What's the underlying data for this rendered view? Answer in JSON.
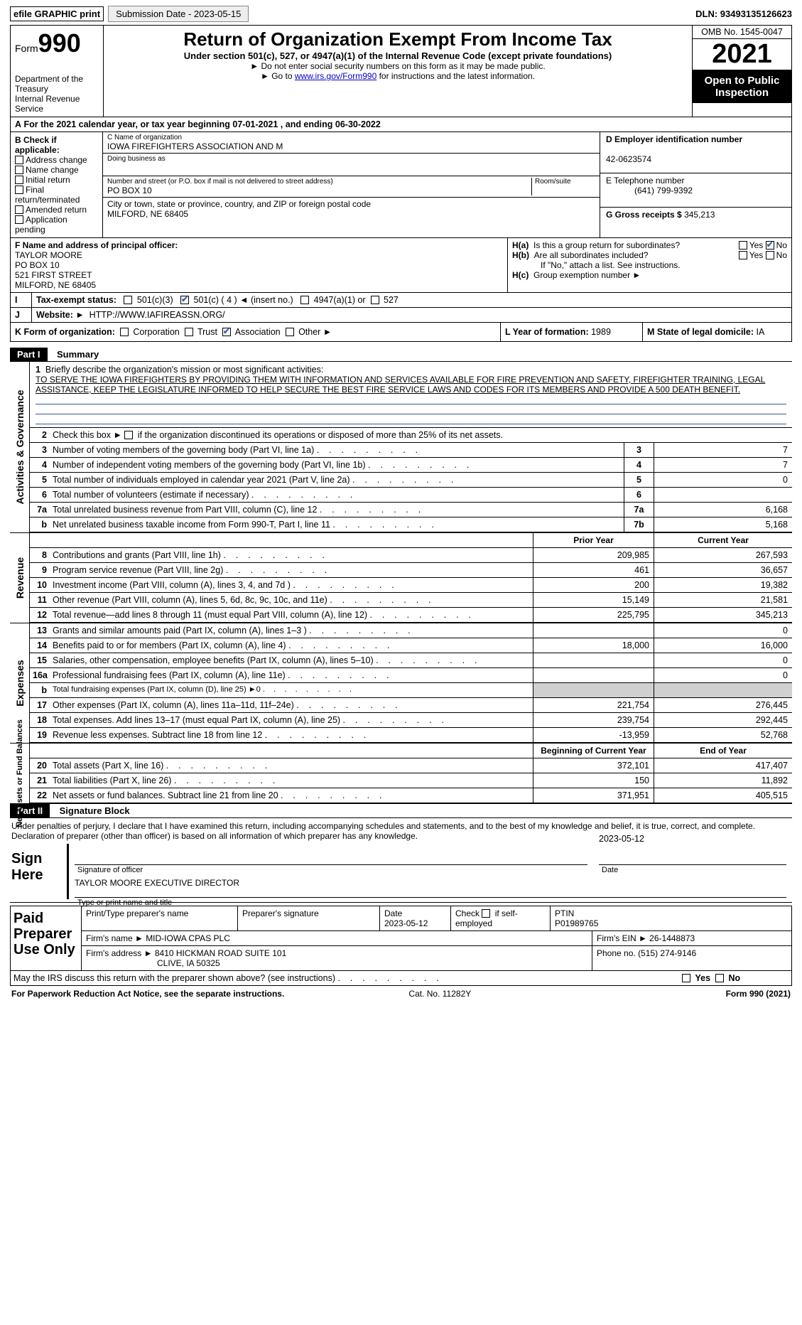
{
  "top": {
    "efile": "efile GRAPHIC print",
    "submission": "Submission Date - 2023-05-15",
    "dln": "DLN: 93493135126623"
  },
  "header": {
    "form_prefix": "Form",
    "form_num": "990",
    "dept": "Department of the Treasury",
    "irs": "Internal Revenue Service",
    "title": "Return of Organization Exempt From Income Tax",
    "sub": "Under section 501(c), 527, or 4947(a)(1) of the Internal Revenue Code (except private foundations)",
    "instr1": "Do not enter social security numbers on this form as it may be made public.",
    "instr2_pre": "Go to ",
    "instr2_link": "www.irs.gov/Form990",
    "instr2_post": " for instructions and the latest information.",
    "omb": "OMB No. 1545-0047",
    "year": "2021",
    "open": "Open to Public Inspection"
  },
  "A": "For the 2021 calendar year, or tax year beginning 07-01-2021    , and ending 06-30-2022",
  "B": {
    "lbl": "B Check if applicable:",
    "items": [
      "Address change",
      "Name change",
      "Initial return",
      "Final return/terminated",
      "Amended return",
      "Application pending"
    ]
  },
  "C": {
    "name_lbl": "C Name of organization",
    "name": "IOWA FIREFIGHTERS ASSOCIATION AND M",
    "dba_lbl": "Doing business as",
    "dba": "",
    "addr_lbl": "Number and street (or P.O. box if mail is not delivered to street address)",
    "room_lbl": "Room/suite",
    "addr": "PO BOX 10",
    "city_lbl": "City or town, state or province, country, and ZIP or foreign postal code",
    "city": "MILFORD, NE  68405"
  },
  "D": {
    "lbl": "D Employer identification number",
    "val": "42-0623574"
  },
  "E": {
    "lbl": "E Telephone number",
    "val": "(641) 799-9392"
  },
  "G": {
    "lbl": "G Gross receipts $",
    "val": "345,213"
  },
  "F": {
    "lbl": "F  Name and address of principal officer:",
    "n1": "TAYLOR MOORE",
    "n2": "PO BOX 10",
    "n3": "521 FIRST STREET",
    "n4": "MILFORD, NE  68405"
  },
  "H": {
    "a": "Is this a group return for subordinates?",
    "b": "Are all subordinates included?",
    "b2": "If \"No,\" attach a list. See instructions.",
    "c": "Group exemption number ►",
    "yes": "Yes",
    "no": "No"
  },
  "I": {
    "lbl": "Tax-exempt status:",
    "c1": "501(c)(3)",
    "c2": "501(c) ( 4 ) ◄ (insert no.)",
    "c3": "4947(a)(1) or",
    "c4": "527"
  },
  "J": {
    "lbl": "Website: ►",
    "val": "HTTP://WWW.IAFIREASSN.ORG/"
  },
  "K": {
    "lbl": "K Form of organization:",
    "c1": "Corporation",
    "c2": "Trust",
    "c3": "Association",
    "c4": "Other ►"
  },
  "L": {
    "lbl": "L Year of formation:",
    "val": "1989"
  },
  "M": {
    "lbl": "M State of legal domicile:",
    "val": "IA"
  },
  "part1": {
    "label": "Part I",
    "title": "Summary"
  },
  "s1": {
    "q": "Briefly describe the organization's mission or most significant activities:",
    "mission": "TO SERVE THE IOWA FIREFIGHTERS BY PROVIDING THEM WITH INFORMATION AND SERVICES AVAILABLE FOR FIRE PREVENTION AND SAFETY, FIREFIGHTER TRAINING, LEGAL ASSISTANCE, KEEP THE LEGISLATURE INFORMED TO HELP SECURE THE BEST FIRE SERVICE LAWS AND CODES FOR ITS MEMBERS AND PROVIDE A 500 DEATH BENEFIT."
  },
  "s2": "Check this box ►      if the organization discontinued its operations or disposed of more than 25% of its net assets.",
  "rows_gov": [
    {
      "n": "3",
      "t": "Number of voting members of the governing body (Part VI, line 1a)",
      "b": "3",
      "v": "7"
    },
    {
      "n": "4",
      "t": "Number of independent voting members of the governing body (Part VI, line 1b)",
      "b": "4",
      "v": "7"
    },
    {
      "n": "5",
      "t": "Total number of individuals employed in calendar year 2021 (Part V, line 2a)",
      "b": "5",
      "v": "0"
    },
    {
      "n": "6",
      "t": "Total number of volunteers (estimate if necessary)",
      "b": "6",
      "v": ""
    },
    {
      "n": "7a",
      "t": "Total unrelated business revenue from Part VIII, column (C), line 12",
      "b": "7a",
      "v": "6,168"
    },
    {
      "n": "b",
      "t": "Net unrelated business taxable income from Form 990-T, Part I, line 11",
      "b": "7b",
      "v": "5,168"
    }
  ],
  "hdr_py": "Prior Year",
  "hdr_cy": "Current Year",
  "rows_rev": [
    {
      "n": "8",
      "t": "Contributions and grants (Part VIII, line 1h)",
      "p": "209,985",
      "c": "267,593"
    },
    {
      "n": "9",
      "t": "Program service revenue (Part VIII, line 2g)",
      "p": "461",
      "c": "36,657"
    },
    {
      "n": "10",
      "t": "Investment income (Part VIII, column (A), lines 3, 4, and 7d )",
      "p": "200",
      "c": "19,382"
    },
    {
      "n": "11",
      "t": "Other revenue (Part VIII, column (A), lines 5, 6d, 8c, 9c, 10c, and 11e)",
      "p": "15,149",
      "c": "21,581"
    },
    {
      "n": "12",
      "t": "Total revenue—add lines 8 through 11 (must equal Part VIII, column (A), line 12)",
      "p": "225,795",
      "c": "345,213"
    }
  ],
  "rows_exp": [
    {
      "n": "13",
      "t": "Grants and similar amounts paid (Part IX, column (A), lines 1–3 )",
      "p": "",
      "c": "0"
    },
    {
      "n": "14",
      "t": "Benefits paid to or for members (Part IX, column (A), line 4)",
      "p": "18,000",
      "c": "16,000"
    },
    {
      "n": "15",
      "t": "Salaries, other compensation, employee benefits (Part IX, column (A), lines 5–10)",
      "p": "",
      "c": "0"
    },
    {
      "n": "16a",
      "t": "Professional fundraising fees (Part IX, column (A), line 11e)",
      "p": "",
      "c": "0"
    },
    {
      "n": "b",
      "t": "Total fundraising expenses (Part IX, column (D), line 25) ►0",
      "p": "GREY",
      "c": "GREY"
    },
    {
      "n": "17",
      "t": "Other expenses (Part IX, column (A), lines 11a–11d, 11f–24e)",
      "p": "221,754",
      "c": "276,445"
    },
    {
      "n": "18",
      "t": "Total expenses. Add lines 13–17 (must equal Part IX, column (A), line 25)",
      "p": "239,754",
      "c": "292,445"
    },
    {
      "n": "19",
      "t": "Revenue less expenses. Subtract line 18 from line 12",
      "p": "-13,959",
      "c": "52,768"
    }
  ],
  "hdr_boy": "Beginning of Current Year",
  "hdr_eoy": "End of Year",
  "rows_na": [
    {
      "n": "20",
      "t": "Total assets (Part X, line 16)",
      "p": "372,101",
      "c": "417,407"
    },
    {
      "n": "21",
      "t": "Total liabilities (Part X, line 26)",
      "p": "150",
      "c": "11,892"
    },
    {
      "n": "22",
      "t": "Net assets or fund balances. Subtract line 21 from line 20",
      "p": "371,951",
      "c": "405,515"
    }
  ],
  "vtabs": {
    "ag": "Activities & Governance",
    "rev": "Revenue",
    "exp": "Expenses",
    "na": "Net Assets or\nFund Balances"
  },
  "part2": {
    "label": "Part II",
    "title": "Signature Block"
  },
  "decl": "Under penalties of perjury, I declare that I have examined this return, including accompanying schedules and statements, and to the best of my knowledge and belief, it is true, correct, and complete. Declaration of preparer (other than officer) is based on all information of which preparer has any knowledge.",
  "sign": {
    "lbl": "Sign Here",
    "cap1": "Signature of officer",
    "date1": "2023-05-12",
    "cap1b": "Date",
    "name": "TAYLOR MOORE  EXECUTIVE DIRECTOR",
    "cap2": "Type or print name and title"
  },
  "prep": {
    "lbl": "Paid Preparer Use Only",
    "h1": "Print/Type preparer's name",
    "h2": "Preparer's signature",
    "h3": "Date",
    "h3v": "2023-05-12",
    "h4": "Check        if self-employed",
    "h5": "PTIN",
    "h5v": "P01989765",
    "firm_lbl": "Firm's name    ►",
    "firm": "MID-IOWA CPAS PLC",
    "ein_lbl": "Firm's EIN ►",
    "ein": "26-1448873",
    "addr_lbl": "Firm's address ►",
    "addr1": "8410 HICKMAN ROAD SUITE 101",
    "addr2": "CLIVE, IA  50325",
    "phone_lbl": "Phone no.",
    "phone": "(515) 274-9146"
  },
  "discuss": "May the IRS discuss this return with the preparer shown above? (see instructions)",
  "foot": {
    "l": "For Paperwork Reduction Act Notice, see the separate instructions.",
    "m": "Cat. No. 11282Y",
    "r": "Form 990 (2021)"
  },
  "colors": {
    "link": "#0000cc",
    "dark": "#000000",
    "grey": "#d0d0d0",
    "blue_line": "#3b5998",
    "check": "#4a5aa8"
  }
}
